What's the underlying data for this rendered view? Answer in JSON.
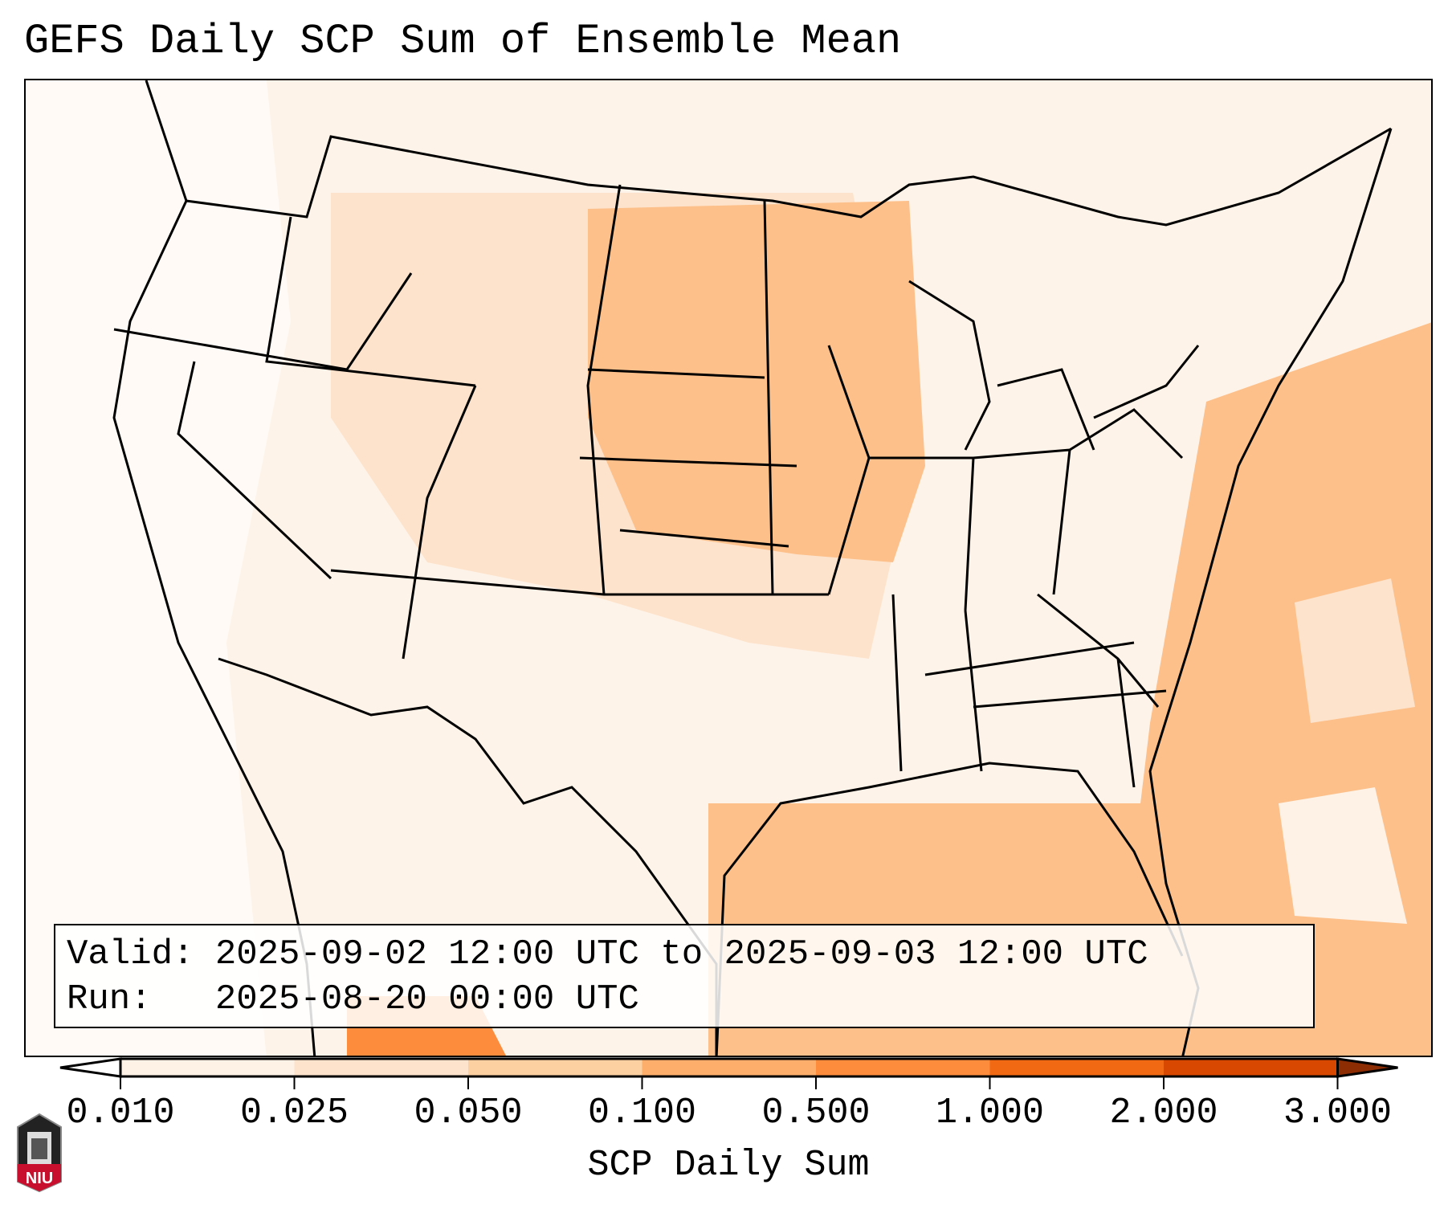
{
  "title": "GEFS Daily SCP Sum of Ensemble Mean",
  "info": {
    "valid_label": "Valid:",
    "valid_value": "2025-09-02 12:00 UTC to 2025-09-03 12:00 UTC",
    "run_label": "Run:",
    "run_value": "2025-08-20 00:00 UTC"
  },
  "colorbar": {
    "label": "SCP Daily Sum",
    "ticks": [
      "0.010",
      "0.025",
      "0.050",
      "0.100",
      "0.500",
      "1.000",
      "2.000",
      "3.000"
    ],
    "colors": [
      "#fef2e6",
      "#fde3cc",
      "#fdd0a2",
      "#fdae6b",
      "#fd8d3c",
      "#f16913",
      "#d94801"
    ],
    "under_color": "#ffffff",
    "over_color": "#8c2d04"
  },
  "logo": {
    "text": "NIU"
  }
}
